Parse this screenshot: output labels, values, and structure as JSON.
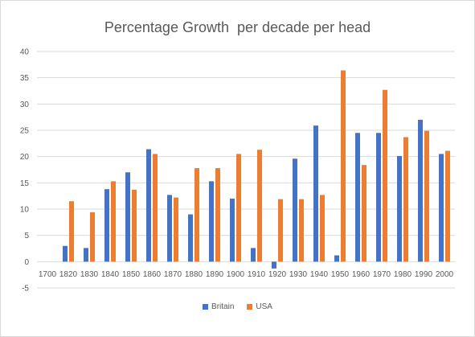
{
  "chart_data": {
    "type": "bar",
    "title": "Percentage Growth  per decade per head",
    "xlabel": "",
    "ylabel": "",
    "ylim": [
      -5,
      40
    ],
    "yticks": [
      -5,
      0,
      5,
      10,
      15,
      20,
      25,
      30,
      35,
      40
    ],
    "grid": true,
    "legend_position": "bottom",
    "categories": [
      "1700",
      "1820",
      "1830",
      "1840",
      "1850",
      "1860",
      "1870",
      "1880",
      "1890",
      "1900",
      "1910",
      "1920",
      "1930",
      "1940",
      "1950",
      "1960",
      "1970",
      "1980",
      "1990",
      "2000"
    ],
    "series": [
      {
        "name": "Britain",
        "color": "#4472c4",
        "values": [
          null,
          3.0,
          2.6,
          13.8,
          17.0,
          21.4,
          12.7,
          9.0,
          15.3,
          12.0,
          2.6,
          -1.3,
          19.6,
          25.9,
          1.2,
          24.5,
          24.5,
          20.1,
          27.0,
          20.5
        ]
      },
      {
        "name": "USA",
        "color": "#ed7d31",
        "values": [
          null,
          11.5,
          9.4,
          15.3,
          13.7,
          20.5,
          12.2,
          17.8,
          17.8,
          20.5,
          21.3,
          11.9,
          11.9,
          12.7,
          36.4,
          18.4,
          32.7,
          23.7,
          24.9,
          21.1
        ]
      }
    ]
  }
}
